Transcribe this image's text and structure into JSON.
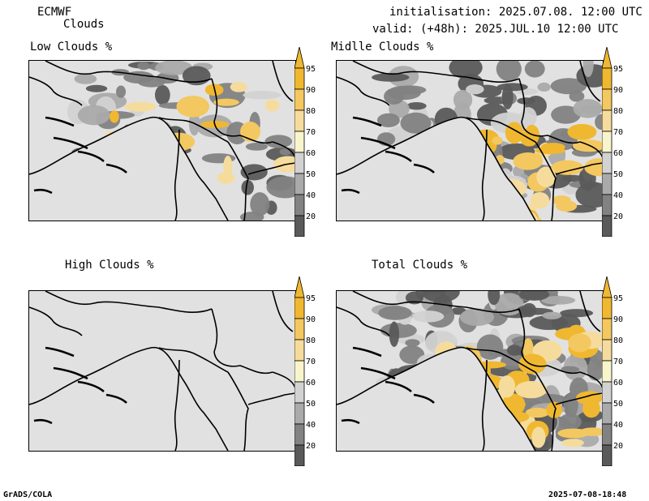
{
  "header": {
    "model": "ECMWF",
    "product": "Clouds",
    "init": "initialisation: 2025.07.08. 12:00 UTC",
    "valid": "valid: (+48h): 2025.JUL.10 12:00 UTC"
  },
  "panels": [
    {
      "title": "Low Clouds %"
    },
    {
      "title": "Midlle Clouds %"
    },
    {
      "title": "High Clouds %"
    },
    {
      "title": "Total Clouds %"
    }
  ],
  "colorbar": {
    "labels": [
      "95",
      "90",
      "80",
      "70",
      "60",
      "50",
      "40",
      "20"
    ],
    "colors": {
      "95": "#f0b830",
      "90": "#f3c860",
      "80": "#f6dc9c",
      "70": "#f8f4cc",
      "60": "#d2d2d2",
      "50": "#aaaaaa",
      "40": "#828282",
      "20": "#5a5a5a"
    }
  },
  "footer": {
    "left": "GrADS/COLA",
    "right": "2025-07-08-18:48"
  }
}
